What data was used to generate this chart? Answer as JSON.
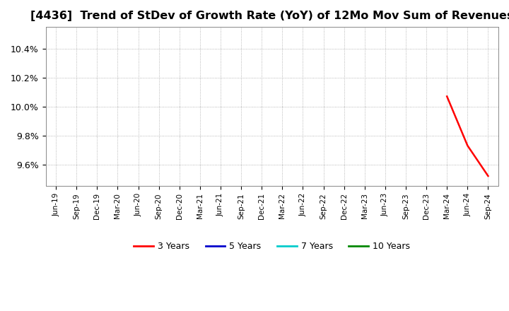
{
  "title": "[4436]  Trend of StDev of Growth Rate (YoY) of 12Mo Mov Sum of Revenues",
  "title_fontsize": 11.5,
  "ylim": [
    0.0945,
    0.1055
  ],
  "yticks": [
    0.096,
    0.098,
    0.1,
    0.102,
    0.104
  ],
  "ytick_labels": [
    "9.6%",
    "9.8%",
    "10.0%",
    "10.2%",
    "10.4%"
  ],
  "line_3y_color": "#ff0000",
  "line_5y_color": "#0000cc",
  "line_7y_color": "#00cccc",
  "line_10y_color": "#008800",
  "legend_labels": [
    "3 Years",
    "5 Years",
    "7 Years",
    "10 Years"
  ],
  "background_color": "#ffffff",
  "grid_color": "#999999",
  "x_dates": [
    "Jun-19",
    "Sep-19",
    "Dec-19",
    "Mar-20",
    "Jun-20",
    "Sep-20",
    "Dec-20",
    "Mar-21",
    "Jun-21",
    "Sep-21",
    "Dec-21",
    "Mar-22",
    "Jun-22",
    "Sep-22",
    "Dec-22",
    "Mar-23",
    "Jun-23",
    "Sep-23",
    "Dec-23",
    "Mar-24",
    "Jun-24",
    "Sep-24"
  ],
  "data_3y": [
    null,
    null,
    null,
    null,
    null,
    null,
    null,
    null,
    null,
    null,
    null,
    null,
    null,
    null,
    null,
    null,
    null,
    null,
    null,
    0.1007,
    0.0973,
    0.0952
  ],
  "data_5y": [],
  "data_7y": [],
  "data_10y": []
}
